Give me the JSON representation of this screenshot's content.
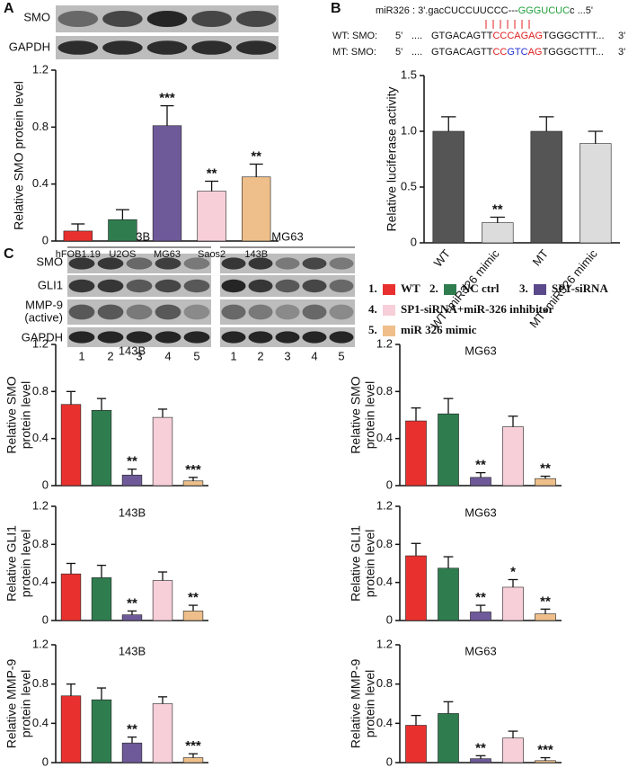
{
  "panels": {
    "a": "A",
    "b": "B",
    "c": "C"
  },
  "blot_a": {
    "rows": [
      "SMO",
      "GAPDH"
    ]
  },
  "sequence": {
    "mir": [
      "miR326 : 3'.gacCUCCUUCCC---",
      "GGGUCUC",
      "c ...5'"
    ],
    "wt": [
      "WT: SMO:",
      "5'",
      "....",
      "GTGACAGTT",
      "CCCAGAG",
      "TGGGCTTT...",
      "3'"
    ],
    "mt": [
      "MT: SMO:",
      "5'",
      "....",
      "GTGACAGTT",
      "CC",
      "GTC",
      "AG",
      "TGGGCTTT...",
      "3'"
    ]
  },
  "blot_c": {
    "groups": [
      "143B",
      "MG63"
    ],
    "rows": [
      "SMO",
      "GLI1",
      "MMP-9",
      "(active)",
      "GAPDH"
    ],
    "lanes": [
      "1",
      "2",
      "3",
      "4",
      "5"
    ]
  },
  "legend": {
    "items": [
      {
        "number": "1.",
        "label": "WT",
        "color": "#e8312f"
      },
      {
        "number": "2.",
        "label": "NC ctrl",
        "color": "#2f7d4f"
      },
      {
        "number": "3.",
        "label": "SP1-siRNA",
        "color": "#5b4a8b"
      },
      {
        "number": "4.",
        "label": "SP1-siRNA+miR-326 inhibitor",
        "color": "#f7cfd9"
      },
      {
        "number": "5.",
        "label": "miR 326 mimic",
        "color": "#eebf8a"
      }
    ]
  },
  "chart_data": [
    {
      "type": "bar",
      "y_label": [
        "Relative SMO protein level"
      ],
      "categories": [
        "hFOB1.19",
        "U2OS",
        "MG63",
        "Saos2",
        "143B"
      ],
      "values": [
        0.07,
        0.15,
        0.81,
        0.35,
        0.45
      ],
      "errors": [
        0.05,
        0.07,
        0.14,
        0.07,
        0.09
      ],
      "colors": [
        "#e8312f",
        "#2f7d4f",
        "#6e5a99",
        "#f7cfd9",
        "#eebf8a"
      ],
      "annotations": [
        {
          "index": 2,
          "text": "***"
        },
        {
          "index": 3,
          "text": "**"
        },
        {
          "index": 4,
          "text": "**"
        }
      ],
      "ylim": [
        0,
        1.2
      ],
      "yticks": [
        0,
        0.4,
        0.8,
        1.2
      ]
    },
    {
      "type": "bar",
      "y_label": [
        "Relative luciferase activity"
      ],
      "categories": [
        "WT",
        "WT+miR326 mimic",
        "MT",
        "MT+miR326 mimic"
      ],
      "values": [
        1.0,
        0.18,
        1.0,
        0.89
      ],
      "errors": [
        0.13,
        0.05,
        0.13,
        0.11
      ],
      "colors": [
        "#555555",
        "#dcdcdc",
        "#555555",
        "#dcdcdc"
      ],
      "annotations": [
        {
          "index": 1,
          "text": "**"
        }
      ],
      "ylim": [
        0,
        1.5
      ],
      "yticks": [
        0,
        0.5,
        {
          "value": 1,
          "label": "1.0"
        },
        1.5
      ]
    },
    {
      "type": "bar",
      "title": "143B",
      "y_label": [
        "Relative SMO",
        "protein level"
      ],
      "categories": [
        null,
        null,
        null,
        null,
        null
      ],
      "values": [
        0.69,
        0.64,
        0.09,
        0.58,
        0.04
      ],
      "errors": [
        0.11,
        0.1,
        0.05,
        0.07,
        0.03
      ],
      "colors": [
        "#e8312f",
        "#2f7d4f",
        "#6e5a99",
        "#f7cfd9",
        "#eebf8a"
      ],
      "annotations": [
        {
          "index": 2,
          "text": "**"
        },
        {
          "index": 4,
          "text": "***"
        }
      ],
      "ylim": [
        0,
        1.2
      ],
      "yticks": [
        0,
        0.4,
        0.8,
        1.2
      ]
    },
    {
      "type": "bar",
      "title": "MG63",
      "y_label": [
        "Relative SMO",
        "protein level"
      ],
      "categories": [
        null,
        null,
        null,
        null,
        null
      ],
      "values": [
        0.55,
        0.61,
        0.07,
        0.5,
        0.06
      ],
      "errors": [
        0.11,
        0.13,
        0.04,
        0.09,
        0.02
      ],
      "colors": [
        "#e8312f",
        "#2f7d4f",
        "#6e5a99",
        "#f7cfd9",
        "#eebf8a"
      ],
      "annotations": [
        {
          "index": 2,
          "text": "**"
        },
        {
          "index": 4,
          "text": "**"
        }
      ],
      "ylim": [
        0,
        1.2
      ],
      "yticks": [
        0,
        0.4,
        0.8,
        1.2
      ]
    },
    {
      "type": "bar",
      "title": "143B",
      "y_label": [
        "Relative GLI1",
        "protein level"
      ],
      "categories": [
        null,
        null,
        null,
        null,
        null
      ],
      "values": [
        0.49,
        0.45,
        0.06,
        0.42,
        0.1
      ],
      "errors": [
        0.11,
        0.13,
        0.04,
        0.09,
        0.06
      ],
      "colors": [
        "#e8312f",
        "#2f7d4f",
        "#6e5a99",
        "#f7cfd9",
        "#eebf8a"
      ],
      "annotations": [
        {
          "index": 2,
          "text": "**"
        },
        {
          "index": 4,
          "text": "**"
        }
      ],
      "ylim": [
        0,
        1.2
      ],
      "yticks": [
        0,
        0.4,
        0.8,
        1.2
      ]
    },
    {
      "type": "bar",
      "title": "MG63",
      "y_label": [
        "Relative GLI1",
        "protein level"
      ],
      "categories": [
        null,
        null,
        null,
        null,
        null
      ],
      "values": [
        0.68,
        0.55,
        0.09,
        0.35,
        0.07
      ],
      "errors": [
        0.13,
        0.12,
        0.07,
        0.08,
        0.05
      ],
      "colors": [
        "#e8312f",
        "#2f7d4f",
        "#6e5a99",
        "#f7cfd9",
        "#eebf8a"
      ],
      "annotations": [
        {
          "index": 2,
          "text": "**"
        },
        {
          "index": 3,
          "text": "*"
        },
        {
          "index": 4,
          "text": "**"
        }
      ],
      "ylim": [
        0,
        1.2
      ],
      "yticks": [
        0,
        0.4,
        0.8,
        1.2
      ]
    },
    {
      "type": "bar",
      "title": "143B",
      "y_label": [
        "Relative MMP-9",
        "protein level"
      ],
      "categories": [
        null,
        null,
        null,
        null,
        null
      ],
      "values": [
        0.68,
        0.64,
        0.2,
        0.6,
        0.05
      ],
      "errors": [
        0.12,
        0.12,
        0.06,
        0.07,
        0.04
      ],
      "colors": [
        "#e8312f",
        "#2f7d4f",
        "#6e5a99",
        "#f7cfd9",
        "#eebf8a"
      ],
      "annotations": [
        {
          "index": 2,
          "text": "**"
        },
        {
          "index": 4,
          "text": "***"
        }
      ],
      "ylim": [
        0,
        1.2
      ],
      "yticks": [
        0,
        0.4,
        0.8,
        1.2
      ]
    },
    {
      "type": "bar",
      "title": "MG63",
      "y_label": [
        "Relative MMP-9",
        "protein level"
      ],
      "categories": [
        null,
        null,
        null,
        null,
        null
      ],
      "values": [
        0.38,
        0.5,
        0.04,
        0.25,
        0.02
      ],
      "errors": [
        0.1,
        0.12,
        0.03,
        0.07,
        0.03
      ],
      "colors": [
        "#e8312f",
        "#2f7d4f",
        "#6e5a99",
        "#f7cfd9",
        "#eebf8a"
      ],
      "annotations": [
        {
          "index": 2,
          "text": "**"
        },
        {
          "index": 4,
          "text": "***"
        }
      ],
      "ylim": [
        0,
        1.2
      ],
      "yticks": [
        0,
        0.4,
        0.8,
        1.2
      ]
    }
  ]
}
